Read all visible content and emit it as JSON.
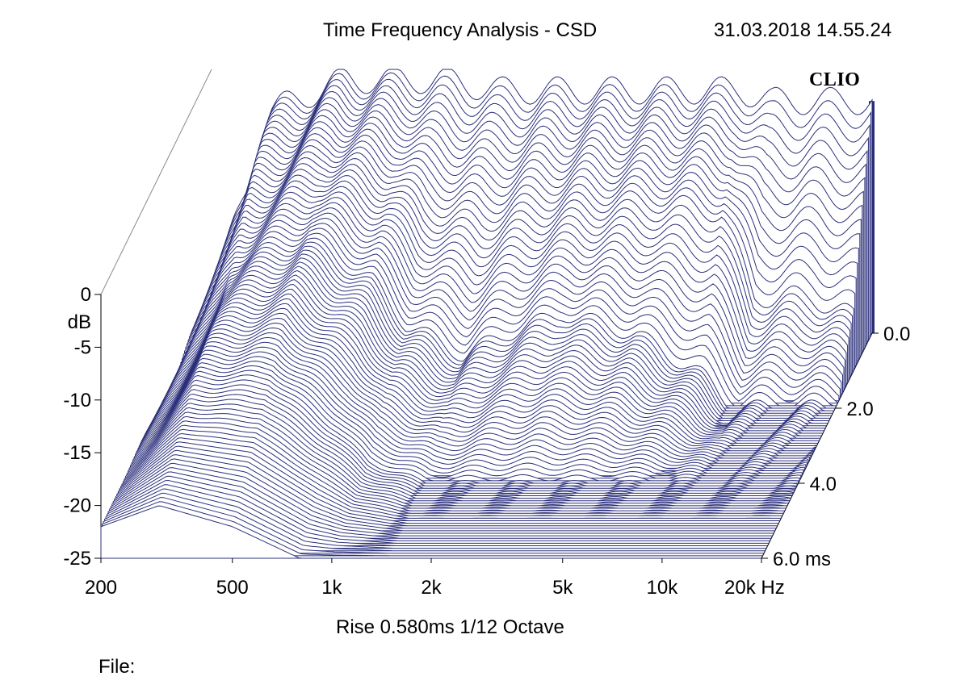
{
  "header": {
    "title": "Time Frequency Analysis - CSD",
    "datetime": "31.03.2018 14.55.24",
    "brand": "CLIO"
  },
  "footer": {
    "settings": "Rise 0.580ms   1/12 Octave",
    "file_label": "File:"
  },
  "chart_data": {
    "type": "waterfall",
    "title": "Time Frequency Analysis - CSD",
    "x_axis": {
      "scale": "log",
      "range": [
        200,
        20000
      ],
      "ticks": [
        200,
        500,
        1000,
        2000,
        5000,
        10000,
        20000
      ],
      "tick_labels": [
        "200",
        "500",
        "1k",
        "2k",
        "5k",
        "10k",
        "20k Hz"
      ]
    },
    "y_axis": {
      "unit_label": "dB",
      "range": [
        -25,
        0
      ],
      "ticks": [
        0,
        -5,
        -10,
        -15,
        -20,
        -25
      ],
      "tick_labels": [
        "0",
        "-5",
        "-10",
        "-15",
        "-20",
        "-25"
      ]
    },
    "z_axis": {
      "unit_label": "ms",
      "range": [
        0,
        6
      ],
      "ticks": [
        0,
        2,
        4,
        6
      ],
      "tick_labels": [
        "0.0",
        "2.0",
        "4.0",
        "6.0  ms"
      ]
    },
    "rise_ms": 0.58,
    "smoothing": "1/12 Octave",
    "series_color": "#2b2f7a",
    "decay_levels_db_at_frequency": {
      "frequencies_hz": [
        200,
        300,
        500,
        800,
        1000,
        1500,
        2000,
        3000,
        5000,
        8000,
        10000,
        15000,
        20000
      ],
      "t0_db": [
        -22,
        -4,
        -1,
        -1,
        -1,
        -2,
        -2,
        -2,
        -2,
        -2,
        -3,
        -3,
        -3
      ],
      "t1ms_db": [
        -22,
        -8,
        -5,
        -7,
        -10,
        -11,
        -10,
        -9,
        -9,
        -10,
        -18,
        -18,
        -20
      ],
      "t2ms_db": [
        -22,
        -11,
        -9,
        -13,
        -17,
        -20,
        -18,
        -16,
        -18,
        -22,
        -25,
        -25,
        -25
      ],
      "t4ms_db": [
        -22,
        -15,
        -15,
        -20,
        -23,
        -25,
        -25,
        -25,
        -25,
        -25,
        -25,
        -25,
        -25
      ],
      "t6ms_db": [
        -22,
        -20,
        -22,
        -25,
        -25,
        -25,
        -25,
        -25,
        -25,
        -25,
        -25,
        -25,
        -25
      ]
    }
  }
}
